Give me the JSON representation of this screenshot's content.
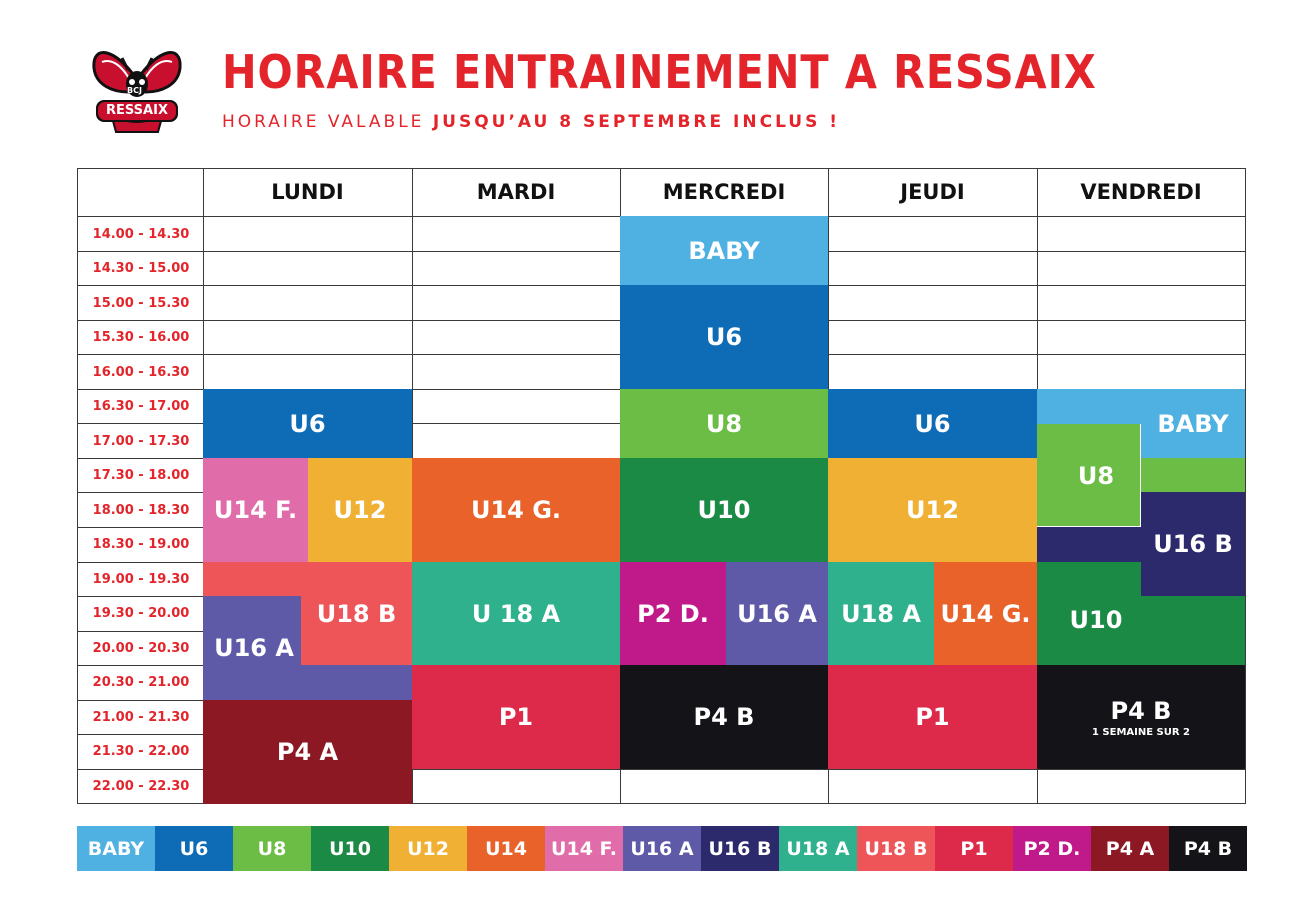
{
  "header": {
    "logo_small": "BCJ",
    "logo_name": "RESSAIX",
    "title": "HORAIRE ENTRAINEMENT A RESSAIX",
    "subtitle_plain": "HORAIRE VALABLE ",
    "subtitle_bold": "JUSQU’AU 8 SEPTEMBRE INCLUS !"
  },
  "days": [
    "LUNDI",
    "MARDI",
    "MERCREDI",
    "JEUDI",
    "VENDREDI"
  ],
  "times": [
    "14.00 - 14.30",
    "14.30 - 15.00",
    "15.00 - 15.30",
    "15.30 - 16.00",
    "16.00 - 16.30",
    "16.30 - 17.00",
    "17.00 - 17.30",
    "17.30 - 18.00",
    "18.00 - 18.30",
    "18.30 - 19.00",
    "19.00 - 19.30",
    "19.30 - 20.00",
    "20.00 - 20.30",
    "20.30 - 21.00",
    "21.00 - 21.30",
    "21.30 - 22.00",
    "22.00 - 22.30"
  ],
  "colors": {
    "BABY": "#4fb0e2",
    "U6": "#0e6cb6",
    "U8": "#6bbd45",
    "U10": "#1b8a45",
    "U12": "#efb034",
    "U14": "#e8622a",
    "U14F": "#e06daa",
    "U16A": "#5e5aa8",
    "U16B": "#2c2a6c",
    "U18A": "#2fb18d",
    "U18B": "#ee5558",
    "P1": "#dd2a4b",
    "P2D": "#c01a8a",
    "P4A": "#8b1822",
    "P4B": "#141418"
  },
  "blocks": {
    "merc_baby": "BABY",
    "merc_u6": "U6",
    "merc_u8": "U8",
    "merc_u10": "U10",
    "merc_p2d": "P2 D.",
    "merc_u16a": "U16 A",
    "merc_p4b": "P4 B",
    "lundi_u6": "U6",
    "lundi_u14f": "U14 F.",
    "lundi_u12": "U12",
    "lundi_u18b": "U18 B",
    "lundi_u16a": "U16 A",
    "lundi_p4a": "P4 A",
    "mardi_u14g": "U14 G.",
    "mardi_u18a": "U 18 A",
    "mardi_p1": "P1",
    "jeudi_u6": "U6",
    "jeudi_u12": "U12",
    "jeudi_u18a": "U18 A",
    "jeudi_u14g": "U14 G.",
    "jeudi_p1": "P1",
    "vend_baby": "BABY",
    "vend_u8": "U8",
    "vend_u16b": "U16 B",
    "vend_u10": "U10",
    "vend_p4b": "P4 B",
    "vend_p4b_note": "1 SEMAINE SUR 2"
  },
  "legend": [
    "BABY",
    "U6",
    "U8",
    "U10",
    "U12",
    "U14",
    "U14 F.",
    "U16 A",
    "U16 B",
    "U18 A",
    "U18 B",
    "P1",
    "P2 D.",
    "P4 A",
    "P4 B"
  ]
}
